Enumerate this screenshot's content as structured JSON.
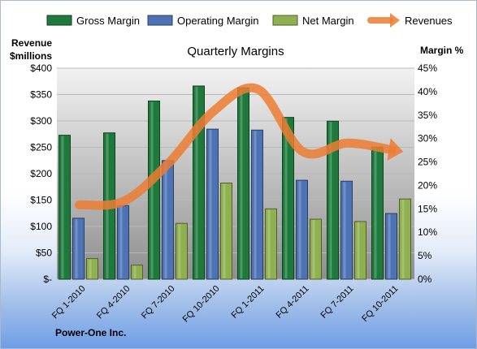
{
  "chart_data": {
    "type": "bar",
    "title": "Quarterly Margins",
    "ylabel_left": "Revenue $millions",
    "ylabel_left_lines": [
      "Revenue",
      "$millions"
    ],
    "ylabel_right": "Margin %",
    "categories": [
      "FQ 1-2010",
      "FQ 4-2010",
      "FQ 7-2010",
      "FQ 10-2010",
      "FQ 1-2011",
      "FQ 4-2011",
      "FQ 7-2011",
      "FQ 10-2011"
    ],
    "left_axis": {
      "min": 0,
      "max": 400,
      "ticks": [
        "$-",
        "$50",
        "$100",
        "$150",
        "$200",
        "$250",
        "$300",
        "$350",
        "$400"
      ]
    },
    "right_axis": {
      "min": 0,
      "max": 45,
      "ticks": [
        "0%",
        "5%",
        "10%",
        "15%",
        "20%",
        "25%",
        "30%",
        "35%",
        "40%",
        "45%"
      ]
    },
    "series": [
      {
        "name": "Gross Margin",
        "axis": "right",
        "kind": "bar",
        "color": "#1e7a3c",
        "values": [
          30.7,
          31.2,
          38.0,
          41.2,
          40.8,
          34.5,
          33.7,
          28.2
        ]
      },
      {
        "name": "Operating Margin",
        "axis": "right",
        "kind": "bar",
        "color": "#4d73b5",
        "values": [
          13.0,
          15.7,
          25.3,
          32.0,
          31.8,
          21.1,
          20.9,
          14.0
        ]
      },
      {
        "name": "Net Margin",
        "axis": "right",
        "kind": "bar",
        "color": "#8fb04e",
        "values": [
          4.4,
          3.0,
          11.9,
          20.5,
          15.0,
          12.8,
          12.3,
          17.1
        ]
      },
      {
        "name": "Revenues",
        "axis": "left",
        "kind": "line",
        "color": "#ed7d31",
        "values": [
          141,
          148,
          220,
          318,
          360,
          242,
          258,
          245
        ]
      }
    ],
    "grid": true,
    "legend": "top"
  },
  "footer": {
    "company": "Power-One Inc."
  }
}
